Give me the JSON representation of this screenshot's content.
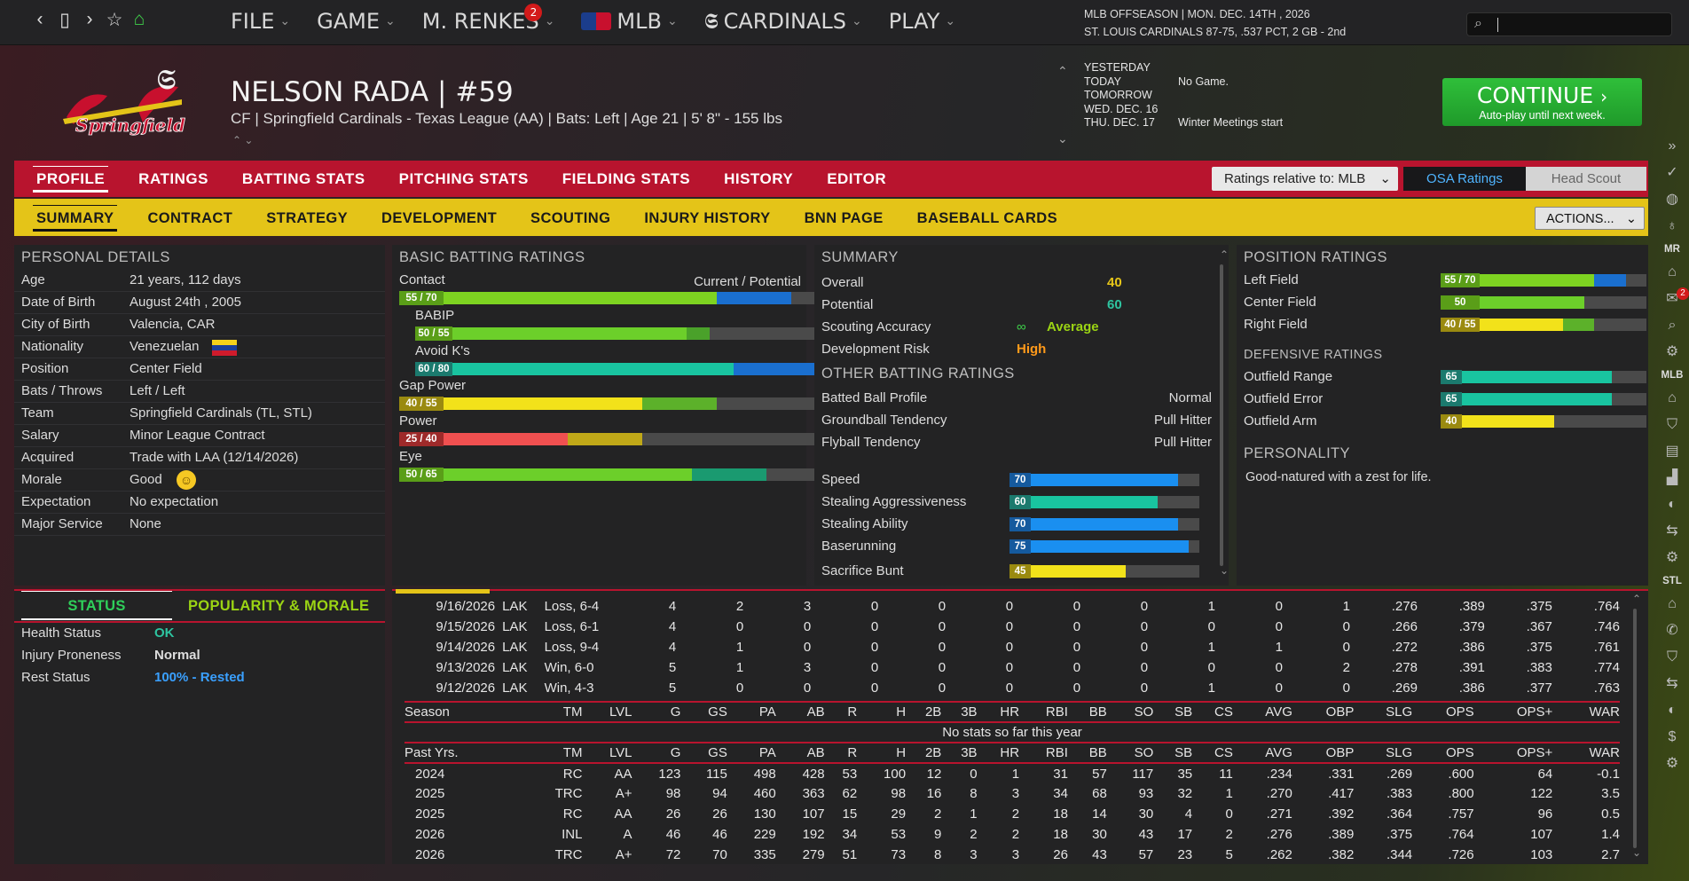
{
  "topbar": {
    "nav_icons": [
      "chevron-left-icon",
      "tablet-icon",
      "chevron-right-icon",
      "star-icon",
      "home-icon"
    ],
    "menu": [
      {
        "label": "FILE"
      },
      {
        "label": "GAME"
      },
      {
        "label": "M. RENKES",
        "badge": "2"
      },
      {
        "label": "MLB",
        "icon": "mlb-logo-icon"
      },
      {
        "label": "CARDINALS",
        "icon": "cardinals-logo-icon"
      },
      {
        "label": "PLAY"
      }
    ],
    "season_line1": "MLB OFFSEASON  |  MON. DEC. 14TH , 2026",
    "season_line2": "ST. LOUIS CARDINALS  87-75, .537 PCT, 2 GB - 2nd",
    "search_placeholder": ""
  },
  "player": {
    "team_logo_text": "Springfield",
    "name": "NELSON RADA  |  #59",
    "info": "CF | Springfield Cardinals - Texas League (AA)  |  Bats: Left  |  Age 21  |  5' 8\"  - 155 lbs"
  },
  "schedule": [
    {
      "label": "YESTERDAY",
      "value": ""
    },
    {
      "label": "TODAY",
      "value": "No Game."
    },
    {
      "label": "TOMORROW",
      "value": ""
    },
    {
      "label": "WED. DEC. 16",
      "value": ""
    },
    {
      "label": "THU. DEC. 17",
      "value": "Winter Meetings start"
    }
  ],
  "continue": {
    "title": "CONTINUE",
    "subtitle": "Auto-play until next week."
  },
  "tabs": [
    "PROFILE",
    "RATINGS",
    "BATTING STATS",
    "PITCHING STATS",
    "FIELDING STATS",
    "HISTORY",
    "EDITOR"
  ],
  "ratings_relative": "Ratings relative to: MLB",
  "osa_label": "OSA Ratings",
  "head_scout_label": "Head Scout",
  "subtabs": [
    "SUMMARY",
    "CONTRACT",
    "STRATEGY",
    "DEVELOPMENT",
    "SCOUTING",
    "INJURY HISTORY",
    "BNN PAGE",
    "BASEBALL CARDS"
  ],
  "actions_label": "ACTIONS...",
  "personal": {
    "title": "PERSONAL DETAILS",
    "rows": [
      {
        "k": "Age",
        "v": "21 years, 112 days"
      },
      {
        "k": "Date of Birth",
        "v": "August 24th , 2005"
      },
      {
        "k": "City of Birth",
        "v": "Valencia, CAR"
      },
      {
        "k": "Nationality",
        "v": "Venezuelan"
      },
      {
        "k": "Position",
        "v": "Center Field"
      },
      {
        "k": "Bats / Throws",
        "v": "Left / Left"
      },
      {
        "k": "Team",
        "v": "Springfield Cardinals (TL, STL)"
      },
      {
        "k": "Salary",
        "v": "Minor League Contract"
      },
      {
        "k": "Acquired",
        "v": "Trade with LAA (12/14/2026)"
      },
      {
        "k": "Morale",
        "v": "Good"
      },
      {
        "k": "Expectation",
        "v": "No expectation"
      },
      {
        "k": "Major Service",
        "v": "None"
      }
    ]
  },
  "status": {
    "tab_status": "STATUS",
    "tab_popularity": "POPULARITY & MORALE",
    "rows": [
      {
        "k": "Health Status",
        "v": "OK",
        "color": "#2ec4a0"
      },
      {
        "k": "Injury Proneness",
        "v": "Normal",
        "color": "#dddddd"
      },
      {
        "k": "Rest Status",
        "v": "100% - Rested",
        "color": "#3aa0ff"
      }
    ]
  },
  "batting": {
    "title": "BASIC BATTING RATINGS",
    "current_potential": "Current / Potential",
    "rows": [
      {
        "label": "Contact",
        "text": "55 / 70",
        "current": 55,
        "potential": 70,
        "cur_color": "#7ed321",
        "pot_color": "#1a6fcf",
        "tag_bg": "#5a9e18",
        "indent": 0
      },
      {
        "label": "BABIP",
        "text": "50 / 55",
        "current": 50,
        "potential": 55,
        "cur_color": "#6ccf2a",
        "pot_color": "#4aa12a",
        "tag_bg": "#5a9e18",
        "indent": 1
      },
      {
        "label": "Avoid K's",
        "text": "60 / 80",
        "current": 60,
        "potential": 80,
        "cur_color": "#19c4a0",
        "pot_color": "#1a6fcf",
        "tag_bg": "#1b7a6e",
        "indent": 1
      },
      {
        "label": "Gap Power",
        "text": "40 / 55",
        "current": 40,
        "potential": 55,
        "cur_color": "#f2e21a",
        "pot_color": "#5cb12a",
        "tag_bg": "#9a8a10",
        "indent": 0
      },
      {
        "label": "Power",
        "text": "25 / 40",
        "current": 25,
        "potential": 40,
        "cur_color": "#f05050",
        "pot_color": "#c0a818",
        "tag_bg": "#9e2a2a",
        "indent": 0
      },
      {
        "label": "Eye",
        "text": "50 / 65",
        "current": 50,
        "potential": 65,
        "cur_color": "#6ccf2a",
        "pot_color": "#1a9a70",
        "tag_bg": "#5a9e18",
        "indent": 0
      }
    ]
  },
  "summary": {
    "title": "SUMMARY",
    "overall_label": "Overall",
    "overall": "40",
    "overall_color": "#e6c619",
    "potential_label": "Potential",
    "potential": "60",
    "potential_color": "#2ec4a0",
    "scouting_label": "Scouting Accuracy",
    "scouting": "Average",
    "devrisk_label": "Development Risk",
    "devrisk": "High",
    "other_title": "OTHER BATTING RATINGS",
    "other": [
      {
        "k": "Batted Ball Profile",
        "v": "Normal"
      },
      {
        "k": "Groundball Tendency",
        "v": "Pull Hitter"
      },
      {
        "k": "Flyball Tendency",
        "v": "Pull Hitter"
      }
    ],
    "bars": [
      {
        "label": "Speed",
        "value": 70,
        "text": "70",
        "color": "#1a8ff0",
        "tag_bg": "#155a9e"
      },
      {
        "label": "Stealing Aggressiveness",
        "value": 60,
        "text": "60",
        "color": "#19c4a0",
        "tag_bg": "#1b7a6e"
      },
      {
        "label": "Stealing Ability",
        "value": 70,
        "text": "70",
        "color": "#1a8ff0",
        "tag_bg": "#155a9e"
      },
      {
        "label": "Baserunning",
        "value": 75,
        "text": "75",
        "color": "#1a8ff0",
        "tag_bg": "#155a9e"
      },
      {
        "label": "Sacrifice Bunt",
        "value": 45,
        "text": "45",
        "color": "#f2e21a",
        "tag_bg": "#9a8a10"
      }
    ]
  },
  "position": {
    "title": "POSITION RATINGS",
    "rows": [
      {
        "label": "Left Field",
        "text": "55 / 70",
        "current": 55,
        "potential": 70,
        "cur_color": "#7ed321",
        "pot_color": "#1a6fcf",
        "tag_bg": "#5a9e18"
      },
      {
        "label": "Center Field",
        "text": "50",
        "current": 50,
        "potential": 50,
        "cur_color": "#6ccf2a",
        "pot_color": "#6ccf2a",
        "tag_bg": "#5a9e18"
      },
      {
        "label": "Right Field",
        "text": "40 / 55",
        "current": 40,
        "potential": 55,
        "cur_color": "#f2e21a",
        "pot_color": "#5cb12a",
        "tag_bg": "#9a8a10"
      }
    ],
    "def_title": "DEFENSIVE RATINGS",
    "def": [
      {
        "label": "Outfield Range",
        "text": "65",
        "current": 65,
        "potential": 65,
        "cur_color": "#19c4a0",
        "pot_color": "#19c4a0",
        "tag_bg": "#1b7a6e"
      },
      {
        "label": "Outfield Error",
        "text": "65",
        "current": 65,
        "potential": 65,
        "cur_color": "#19c4a0",
        "pot_color": "#19c4a0",
        "tag_bg": "#1b7a6e"
      },
      {
        "label": "Outfield Arm",
        "text": "40",
        "current": 40,
        "potential": 40,
        "cur_color": "#f2e21a",
        "pot_color": "#f2e21a",
        "tag_bg": "#9a8a10"
      }
    ],
    "personality_title": "PERSONALITY",
    "personality": "Good-natured with a zest for life."
  },
  "recent_games": [
    [
      "9/16/2026",
      "LAK",
      "Loss, 6-4",
      "4",
      "2",
      "3",
      "0",
      "0",
      "0",
      "0",
      "0",
      "1",
      "0",
      "1",
      ".276",
      ".389",
      ".375",
      ".764"
    ],
    [
      "9/15/2026",
      "LAK",
      "Loss, 6-1",
      "4",
      "0",
      "0",
      "0",
      "0",
      "0",
      "0",
      "0",
      "0",
      "0",
      "0",
      ".266",
      ".379",
      ".367",
      ".746"
    ],
    [
      "9/14/2026",
      "LAK",
      "Loss, 9-4",
      "4",
      "1",
      "0",
      "0",
      "0",
      "0",
      "0",
      "0",
      "1",
      "1",
      "0",
      ".272",
      ".386",
      ".375",
      ".761"
    ],
    [
      "9/13/2026",
      "LAK",
      "Win, 6-0",
      "5",
      "1",
      "3",
      "0",
      "0",
      "0",
      "0",
      "0",
      "0",
      "0",
      "2",
      ".278",
      ".391",
      ".383",
      ".774"
    ],
    [
      "9/12/2026",
      "LAK",
      "Win, 4-3",
      "5",
      "0",
      "0",
      "0",
      "0",
      "0",
      "0",
      "0",
      "1",
      "0",
      "0",
      ".269",
      ".386",
      ".377",
      ".763"
    ]
  ],
  "season_header": [
    "Season",
    "TM",
    "LVL",
    "G",
    "GS",
    "PA",
    "AB",
    "R",
    "H",
    "2B",
    "3B",
    "HR",
    "RBI",
    "BB",
    "SO",
    "SB",
    "CS",
    "AVG",
    "OBP",
    "SLG",
    "OPS",
    "OPS+",
    "WAR"
  ],
  "no_stats": "No stats so far this year",
  "past_header": [
    "Past Yrs.",
    "TM",
    "LVL",
    "G",
    "GS",
    "PA",
    "AB",
    "R",
    "H",
    "2B",
    "3B",
    "HR",
    "RBI",
    "BB",
    "SO",
    "SB",
    "CS",
    "AVG",
    "OBP",
    "SLG",
    "OPS",
    "OPS+",
    "WAR"
  ],
  "past": [
    [
      "2024",
      "RC",
      "AA",
      "123",
      "115",
      "498",
      "428",
      "53",
      "100",
      "12",
      "0",
      "1",
      "31",
      "57",
      "117",
      "35",
      "11",
      ".234",
      ".331",
      ".269",
      ".600",
      "64",
      "-0.1"
    ],
    [
      "2025",
      "TRC",
      "A+",
      "98",
      "94",
      "460",
      "363",
      "62",
      "98",
      "16",
      "8",
      "3",
      "34",
      "68",
      "93",
      "32",
      "1",
      ".270",
      ".417",
      ".383",
      ".800",
      "122",
      "3.5"
    ],
    [
      "2025",
      "RC",
      "AA",
      "26",
      "26",
      "130",
      "107",
      "15",
      "29",
      "2",
      "1",
      "2",
      "18",
      "14",
      "30",
      "4",
      "0",
      ".271",
      ".392",
      ".364",
      ".757",
      "96",
      "0.5"
    ],
    [
      "2026",
      "INL",
      "A",
      "46",
      "46",
      "229",
      "192",
      "34",
      "53",
      "9",
      "2",
      "2",
      "18",
      "30",
      "43",
      "17",
      "2",
      ".276",
      ".389",
      ".375",
      ".764",
      "107",
      "1.4"
    ],
    [
      "2026",
      "TRC",
      "A+",
      "72",
      "70",
      "335",
      "279",
      "51",
      "73",
      "8",
      "3",
      "3",
      "26",
      "43",
      "57",
      "23",
      "5",
      ".262",
      ".382",
      ".344",
      ".726",
      "103",
      "2.7"
    ]
  ],
  "rightrail": [
    {
      "type": "icon",
      "name": "double-chevron-right-icon",
      "glyph": "»"
    },
    {
      "type": "icon",
      "name": "check-icon",
      "glyph": "✓"
    },
    {
      "type": "icon",
      "name": "globe-icon",
      "glyph": "◍"
    },
    {
      "type": "icon",
      "name": "lightbulb-icon",
      "glyph": "♁"
    },
    {
      "type": "text",
      "name": "mr-label",
      "text": "MR"
    },
    {
      "type": "icon",
      "name": "home-icon",
      "glyph": "⌂"
    },
    {
      "type": "icon",
      "name": "mail-icon",
      "glyph": "✉",
      "badge": "2"
    },
    {
      "type": "icon",
      "name": "search-icon",
      "glyph": "⌕"
    },
    {
      "type": "icon",
      "name": "gear-icon",
      "glyph": "⚙"
    },
    {
      "type": "text",
      "name": "mlb-label",
      "text": "MLB"
    },
    {
      "type": "icon",
      "name": "home-icon",
      "glyph": "⌂"
    },
    {
      "type": "icon",
      "name": "shield-icon",
      "glyph": "⛉"
    },
    {
      "type": "icon",
      "name": "news-icon",
      "glyph": "▤"
    },
    {
      "type": "icon",
      "name": "chart-icon",
      "glyph": "▟"
    },
    {
      "type": "icon",
      "name": "baseball-icon",
      "glyph": "◐"
    },
    {
      "type": "icon",
      "name": "transfer-icon",
      "glyph": "⇆"
    },
    {
      "type": "icon",
      "name": "gear-icon",
      "glyph": "⚙"
    },
    {
      "type": "text",
      "name": "stl-label",
      "text": "STL"
    },
    {
      "type": "icon",
      "name": "home-icon",
      "glyph": "⌂"
    },
    {
      "type": "icon",
      "name": "phone-icon",
      "glyph": "✆"
    },
    {
      "type": "icon",
      "name": "shield-icon",
      "glyph": "⛉"
    },
    {
      "type": "icon",
      "name": "transfer-icon",
      "glyph": "⇆"
    },
    {
      "type": "icon",
      "name": "baseball-icon",
      "glyph": "◐"
    },
    {
      "type": "icon",
      "name": "dollar-icon",
      "glyph": "$"
    },
    {
      "type": "icon",
      "name": "gear-icon",
      "glyph": "⚙"
    }
  ]
}
